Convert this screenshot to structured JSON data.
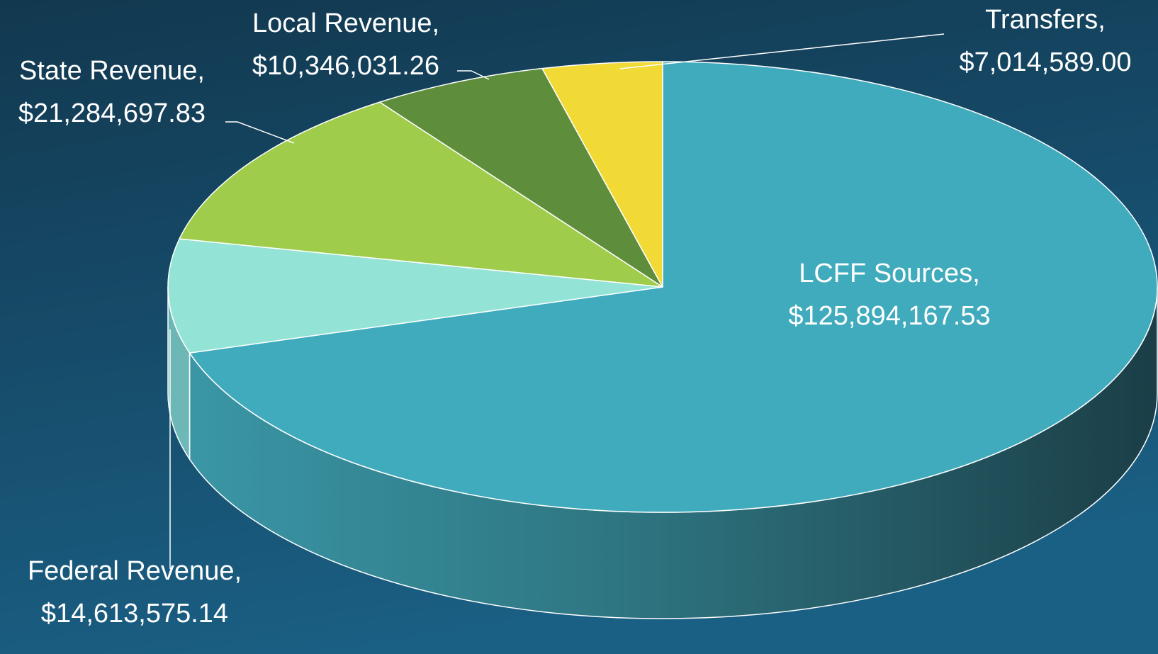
{
  "chart_data": {
    "type": "pie",
    "categories": [
      "LCFF Sources,",
      "Federal Revenue,",
      "State Revenue,",
      "Local Revenue,",
      "Transfers,"
    ],
    "values": [
      125894167.53,
      14613575.14,
      21284697.83,
      10346031.26,
      7014589.0
    ],
    "value_labels": [
      "$125,894,167.53",
      "$14,613,575.14",
      "$21,284,697.83",
      "$10,346,031.26",
      "$7,014,589.00"
    ],
    "colors": [
      "#40abbd",
      "#93e4d6",
      "#9fcc4a",
      "#5e8d3b",
      "#f2da36"
    ]
  }
}
